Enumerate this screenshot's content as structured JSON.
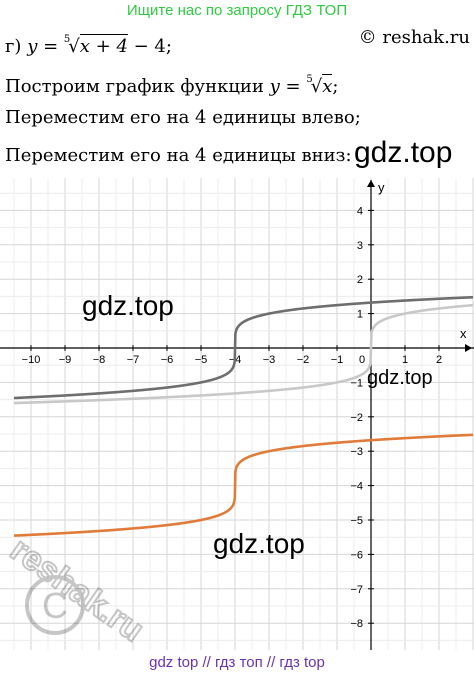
{
  "header": {
    "banner": "Ищите нас по запросу ГДЗ ТОП",
    "copyright": "© reshak.ru"
  },
  "problem": {
    "label": "г)",
    "formula_lhs": "y =",
    "root_index": "5",
    "radicand": "x + 4",
    "formula_tail": " − 4;"
  },
  "steps": {
    "step1_text": "Построим график функции ",
    "step1_lhs": "y =",
    "step1_index": "5",
    "step1_radicand": "x",
    "step1_end": ";",
    "step2": "Переместим его на 4 единицы влево;",
    "step3": "Переместим его на 4 единицы вниз:"
  },
  "watermarks": {
    "w1": "gdz.top",
    "w2": "gdz.top",
    "w3": "gdz.top",
    "w4": "gdz.top",
    "seal_text": "reshak.ru"
  },
  "footer": {
    "banner": "gdz top  //  гдз топ  //  гдз top"
  },
  "chart_data": {
    "type": "line",
    "xlabel": "x",
    "ylabel": "y",
    "xlim": [
      -10.5,
      3
    ],
    "ylim": [
      -8.7,
      4.7
    ],
    "x_ticks": [
      -10,
      -9,
      -8,
      -7,
      -6,
      -5,
      -4,
      -3,
      -2,
      -1,
      0,
      1,
      2
    ],
    "y_ticks": [
      -8,
      -7,
      -6,
      -5,
      -4,
      -3,
      -2,
      -1,
      1,
      2,
      3,
      4
    ],
    "grid": true,
    "series": [
      {
        "color": "#c8c8c8",
        "shift_x": 0,
        "shift_y": 0,
        "root": 5
      },
      {
        "color": "#6e6e6e",
        "shift_x": -4,
        "shift_y": 0,
        "root": 5
      },
      {
        "color": "#e07b39",
        "shift_x": -4,
        "shift_y": -4,
        "root": 5
      }
    ]
  }
}
